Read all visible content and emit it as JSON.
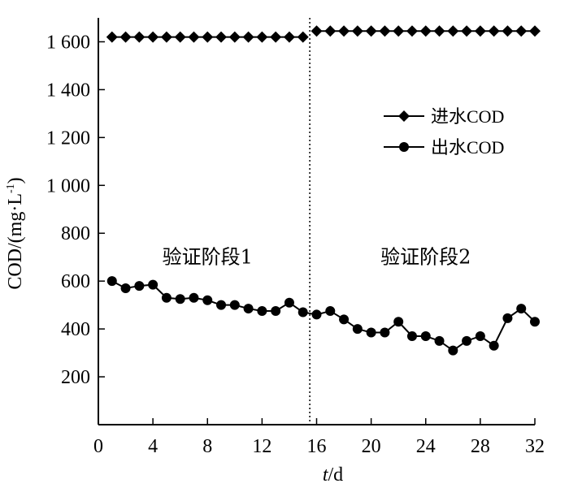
{
  "chart_data": {
    "type": "line",
    "xlabel_italic": "t",
    "xlabel_unit": "/d",
    "ylabel": "COD/(mg·L",
    "ylabel_sup": "-1",
    "ylabel_close": ")",
    "xlim": [
      0,
      32
    ],
    "ylim": [
      0,
      1700
    ],
    "x_ticks": [
      0,
      4,
      8,
      12,
      16,
      20,
      24,
      28,
      32
    ],
    "x_tick_labels": [
      "0",
      "4",
      "8",
      "12",
      "16",
      "20",
      "24",
      "28",
      "32"
    ],
    "y_ticks": [
      200,
      400,
      600,
      800,
      1000,
      1200,
      1400,
      1600
    ],
    "y_tick_labels": [
      "200",
      "400",
      "600",
      "800",
      "1 000",
      "1 200",
      "1 400",
      "1 600"
    ],
    "divider_x": 15.5,
    "stage_labels": [
      {
        "text": "验证阶段1",
        "x": 8,
        "y": 700
      },
      {
        "text": "验证阶段2",
        "x": 24,
        "y": 700
      }
    ],
    "legend": {
      "placement": "top-right"
    },
    "series": [
      {
        "name": "进水COD",
        "marker": "diamond",
        "x": [
          1,
          2,
          3,
          4,
          5,
          6,
          7,
          8,
          9,
          10,
          11,
          12,
          13,
          14,
          15
        ],
        "values": [
          1620,
          1620,
          1620,
          1620,
          1620,
          1620,
          1620,
          1620,
          1620,
          1620,
          1620,
          1620,
          1620,
          1620,
          1620
        ]
      },
      {
        "name": "进水COD",
        "marker": "diamond",
        "legend": false,
        "x": [
          16,
          17,
          18,
          19,
          20,
          21,
          22,
          23,
          24,
          25,
          26,
          27,
          28,
          29,
          30,
          31,
          32
        ],
        "values": [
          1645,
          1645,
          1645,
          1645,
          1645,
          1645,
          1645,
          1645,
          1645,
          1645,
          1645,
          1645,
          1645,
          1645,
          1645,
          1645,
          1645
        ]
      },
      {
        "name": "出水COD",
        "marker": "circle",
        "x": [
          1,
          2,
          3,
          4,
          5,
          6,
          7,
          8,
          9,
          10,
          11,
          12,
          13,
          14,
          15,
          16,
          17,
          18,
          19,
          20,
          21,
          22,
          23,
          24,
          25,
          26,
          27,
          28,
          29,
          30,
          31,
          32
        ],
        "values": [
          600,
          570,
          580,
          585,
          530,
          525,
          530,
          520,
          500,
          500,
          485,
          475,
          475,
          510,
          470,
          460,
          475,
          440,
          400,
          385,
          385,
          430,
          370,
          370,
          350,
          310,
          350,
          370,
          330,
          445,
          485,
          430
        ]
      }
    ]
  }
}
